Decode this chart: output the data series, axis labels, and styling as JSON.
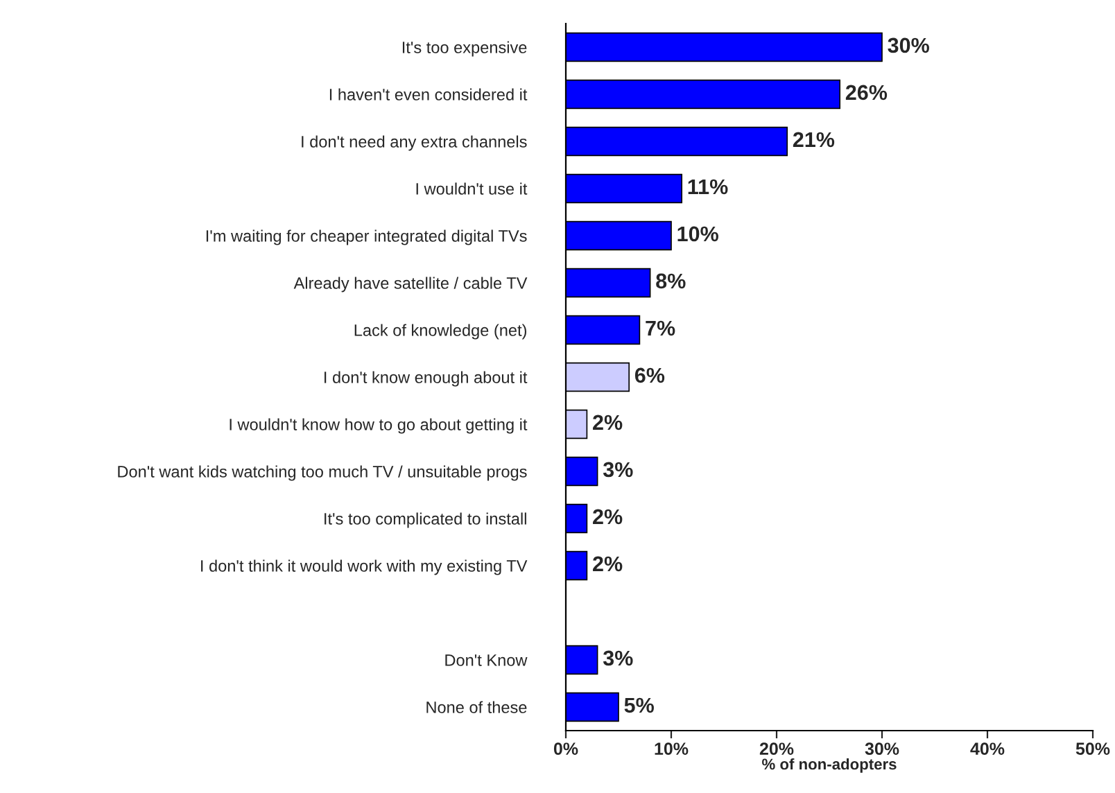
{
  "chart_data": {
    "type": "bar",
    "orientation": "horizontal",
    "xlabel": "% of non-adopters",
    "categories": [
      "It's too expensive",
      "I haven't even considered it",
      "I don't need any extra channels",
      "I wouldn't use it",
      "I'm waiting for cheaper integrated digital TVs",
      "Already have satellite / cable TV",
      "Lack of knowledge (net)",
      "I don't know enough about it",
      "I wouldn't know how to go about getting it",
      "Don't want kids watching too much TV / unsuitable progs",
      "It's too complicated to install",
      "I don't think it would work with my existing TV",
      null,
      "Don't Know",
      "None of these"
    ],
    "values": [
      30,
      26,
      21,
      11,
      10,
      8,
      7,
      6,
      2,
      3,
      2,
      2,
      null,
      3,
      5
    ],
    "value_labels": [
      "30%",
      "26%",
      "21%",
      "11%",
      "10%",
      "8%",
      "7%",
      "6%",
      "2%",
      "3%",
      "2%",
      "2%",
      null,
      "3%",
      "5%"
    ],
    "colors": [
      "#0000ff",
      "#0000ff",
      "#0000ff",
      "#0000ff",
      "#0000ff",
      "#0000ff",
      "#0000ff",
      "#ccccff",
      "#ccccff",
      "#0000ff",
      "#0000ff",
      "#0000ff",
      "#0000ff",
      "#0000ff",
      "#0000ff"
    ],
    "xlim": [
      0,
      50
    ],
    "xticks": [
      {
        "value": 0,
        "label": "0%"
      },
      {
        "value": 10,
        "label": "10%"
      },
      {
        "value": 20,
        "label": "20%"
      },
      {
        "value": 30,
        "label": "30%"
      },
      {
        "value": 40,
        "label": "40%"
      },
      {
        "value": 50,
        "label": "50%"
      }
    ],
    "grid": false,
    "legend": false
  }
}
